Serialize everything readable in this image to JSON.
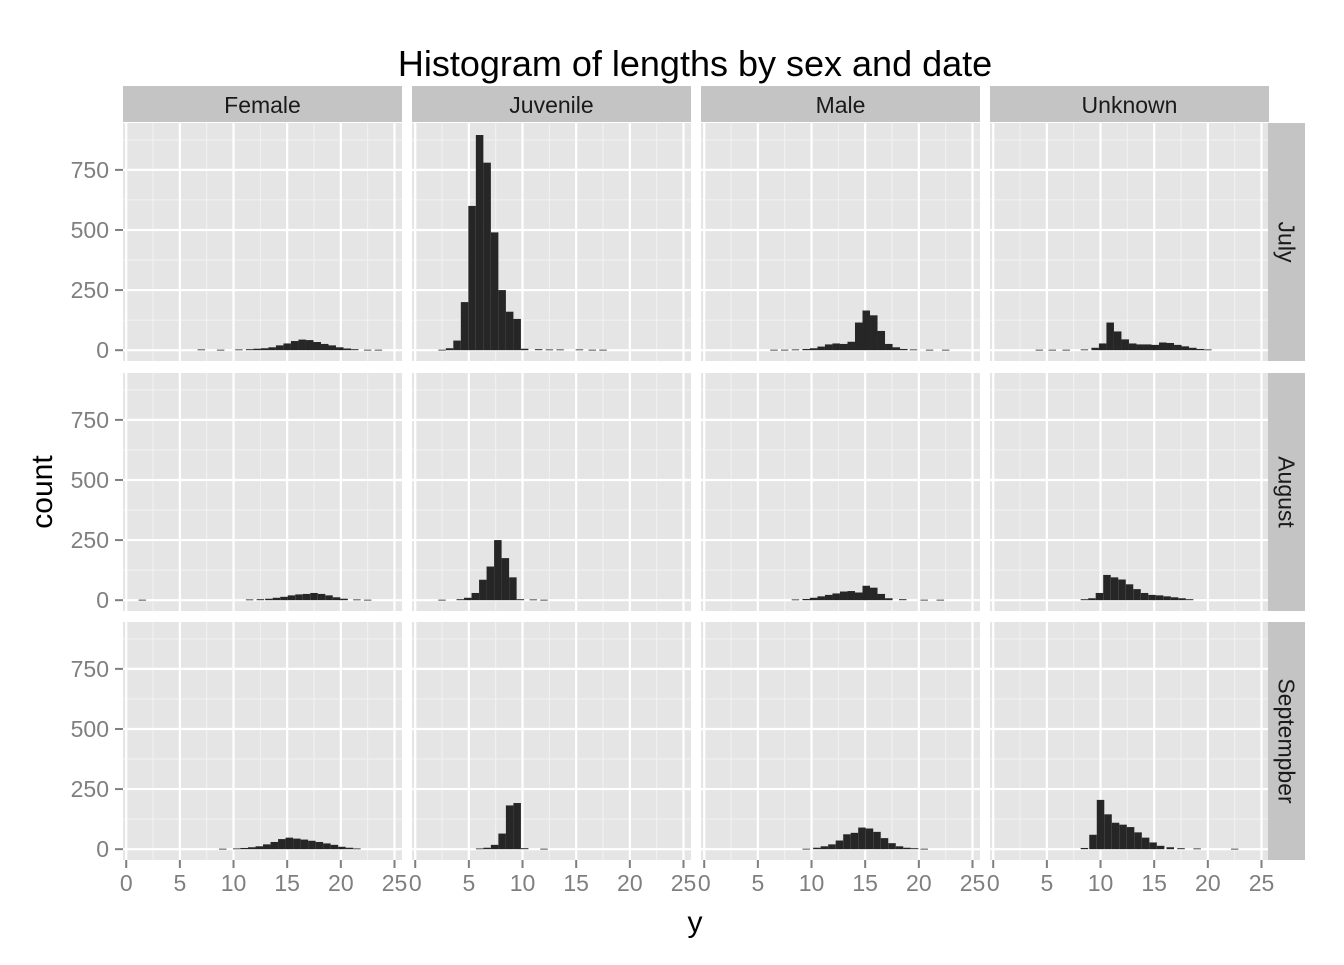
{
  "chart_data": {
    "type": "bar",
    "title": "Histogram of lengths by sex and date",
    "xlabel": "y",
    "ylabel": "count",
    "xlim": [
      -0.3,
      25.7
    ],
    "ylim": [
      -45,
      945
    ],
    "x_ticks": [
      0,
      5,
      10,
      15,
      20,
      25
    ],
    "y_ticks": [
      0,
      250,
      500,
      750
    ],
    "y_tick_labels": [
      "0",
      "250",
      "500",
      "750"
    ],
    "x_tick_labels": [
      "0",
      "5",
      "10",
      "15",
      "20",
      "25"
    ],
    "grid": true,
    "legend": "none",
    "bin_width": 0.7,
    "bar_color": "#262626",
    "panel_background": "#e5e5e5",
    "strip_background": "#c4c4c4",
    "columns": [
      "Female",
      "Juvenile",
      "Male",
      "Unknown"
    ],
    "rows": [
      "July",
      "August",
      "Septempber"
    ],
    "panels": [
      {
        "column": "Female",
        "row": "July",
        "bins": [
          [
            7.0,
            3
          ],
          [
            8.8,
            2
          ],
          [
            10.5,
            3
          ],
          [
            11.5,
            4
          ],
          [
            12.2,
            6
          ],
          [
            12.9,
            8
          ],
          [
            13.6,
            12
          ],
          [
            14.3,
            20
          ],
          [
            15.0,
            28
          ],
          [
            15.7,
            38
          ],
          [
            16.4,
            44
          ],
          [
            17.1,
            42
          ],
          [
            17.8,
            34
          ],
          [
            18.5,
            26
          ],
          [
            19.2,
            20
          ],
          [
            19.9,
            12
          ],
          [
            20.6,
            7
          ],
          [
            21.3,
            4
          ],
          [
            22.5,
            2
          ],
          [
            23.5,
            2
          ]
        ]
      },
      {
        "column": "Juvenile",
        "row": "July",
        "bins": [
          [
            2.5,
            2
          ],
          [
            3.2,
            8
          ],
          [
            3.9,
            40
          ],
          [
            4.6,
            200
          ],
          [
            5.3,
            600
          ],
          [
            6.0,
            895
          ],
          [
            6.7,
            780
          ],
          [
            7.4,
            490
          ],
          [
            8.1,
            250
          ],
          [
            8.8,
            160
          ],
          [
            9.5,
            130
          ],
          [
            10.2,
            6
          ],
          [
            11.5,
            4
          ],
          [
            12.5,
            3
          ],
          [
            13.5,
            3
          ],
          [
            15.3,
            3
          ],
          [
            16.5,
            2
          ],
          [
            17.5,
            2
          ]
        ]
      },
      {
        "column": "Male",
        "row": "July",
        "bins": [
          [
            6.5,
            2
          ],
          [
            7.5,
            2
          ],
          [
            8.5,
            3
          ],
          [
            9.5,
            5
          ],
          [
            10.2,
            8
          ],
          [
            10.9,
            15
          ],
          [
            11.6,
            24
          ],
          [
            12.3,
            28
          ],
          [
            13.0,
            26
          ],
          [
            13.7,
            35
          ],
          [
            14.4,
            115
          ],
          [
            15.1,
            165
          ],
          [
            15.8,
            145
          ],
          [
            16.5,
            80
          ],
          [
            17.2,
            26
          ],
          [
            17.9,
            12
          ],
          [
            18.6,
            5
          ],
          [
            19.5,
            3
          ],
          [
            21.0,
            2
          ],
          [
            22.5,
            2
          ]
        ]
      },
      {
        "column": "Unknown",
        "row": "July",
        "bins": [
          [
            4.3,
            2
          ],
          [
            5.5,
            2
          ],
          [
            6.8,
            2
          ],
          [
            8.5,
            3
          ],
          [
            9.5,
            10
          ],
          [
            10.2,
            28
          ],
          [
            10.9,
            115
          ],
          [
            11.6,
            78
          ],
          [
            12.3,
            45
          ],
          [
            13.0,
            28
          ],
          [
            13.7,
            24
          ],
          [
            14.4,
            24
          ],
          [
            15.1,
            22
          ],
          [
            15.8,
            32
          ],
          [
            16.5,
            30
          ],
          [
            17.2,
            22
          ],
          [
            17.9,
            16
          ],
          [
            18.6,
            10
          ],
          [
            19.3,
            5
          ],
          [
            20.0,
            3
          ]
        ]
      },
      {
        "column": "Female",
        "row": "August",
        "bins": [
          [
            1.5,
            2
          ],
          [
            11.5,
            3
          ],
          [
            12.5,
            4
          ],
          [
            13.3,
            6
          ],
          [
            14.0,
            10
          ],
          [
            14.7,
            14
          ],
          [
            15.4,
            20
          ],
          [
            16.1,
            24
          ],
          [
            16.8,
            26
          ],
          [
            17.5,
            30
          ],
          [
            18.2,
            26
          ],
          [
            18.9,
            20
          ],
          [
            19.6,
            12
          ],
          [
            20.3,
            6
          ],
          [
            21.5,
            3
          ],
          [
            22.5,
            2
          ]
        ]
      },
      {
        "column": "Juvenile",
        "row": "August",
        "bins": [
          [
            2.5,
            2
          ],
          [
            4.2,
            4
          ],
          [
            4.9,
            10
          ],
          [
            5.6,
            30
          ],
          [
            6.3,
            85
          ],
          [
            7.0,
            140
          ],
          [
            7.7,
            250
          ],
          [
            8.4,
            175
          ],
          [
            9.1,
            95
          ],
          [
            9.8,
            4
          ],
          [
            11.0,
            3
          ],
          [
            12.0,
            2
          ]
        ]
      },
      {
        "column": "Male",
        "row": "August",
        "bins": [
          [
            8.5,
            3
          ],
          [
            9.5,
            5
          ],
          [
            10.2,
            10
          ],
          [
            10.9,
            16
          ],
          [
            11.6,
            22
          ],
          [
            12.3,
            28
          ],
          [
            13.0,
            36
          ],
          [
            13.7,
            38
          ],
          [
            14.4,
            32
          ],
          [
            15.1,
            60
          ],
          [
            15.8,
            52
          ],
          [
            16.5,
            26
          ],
          [
            17.2,
            8
          ],
          [
            18.5,
            4
          ],
          [
            20.5,
            2
          ],
          [
            22.0,
            2
          ]
        ]
      },
      {
        "column": "Unknown",
        "row": "August",
        "bins": [
          [
            8.5,
            4
          ],
          [
            9.2,
            8
          ],
          [
            9.9,
            30
          ],
          [
            10.6,
            105
          ],
          [
            11.3,
            95
          ],
          [
            12.0,
            86
          ],
          [
            12.7,
            66
          ],
          [
            13.4,
            46
          ],
          [
            14.1,
            30
          ],
          [
            14.8,
            22
          ],
          [
            15.5,
            20
          ],
          [
            16.2,
            16
          ],
          [
            16.9,
            12
          ],
          [
            17.6,
            8
          ],
          [
            18.3,
            4
          ]
        ]
      },
      {
        "column": "Female",
        "row": "Septempber",
        "bins": [
          [
            9.0,
            2
          ],
          [
            10.3,
            3
          ],
          [
            11.0,
            5
          ],
          [
            11.7,
            8
          ],
          [
            12.4,
            12
          ],
          [
            13.1,
            20
          ],
          [
            13.8,
            30
          ],
          [
            14.5,
            42
          ],
          [
            15.2,
            48
          ],
          [
            15.9,
            44
          ],
          [
            16.6,
            40
          ],
          [
            17.3,
            35
          ],
          [
            18.0,
            30
          ],
          [
            18.7,
            24
          ],
          [
            19.4,
            18
          ],
          [
            20.1,
            10
          ],
          [
            20.8,
            6
          ],
          [
            21.5,
            3
          ]
        ]
      },
      {
        "column": "Juvenile",
        "row": "Septempber",
        "bins": [
          [
            6.0,
            3
          ],
          [
            6.7,
            6
          ],
          [
            7.4,
            18
          ],
          [
            8.1,
            65
          ],
          [
            8.8,
            182
          ],
          [
            9.5,
            192
          ],
          [
            10.2,
            4
          ],
          [
            12.0,
            2
          ]
        ]
      },
      {
        "column": "Male",
        "row": "Septempber",
        "bins": [
          [
            9.5,
            2
          ],
          [
            10.5,
            6
          ],
          [
            11.2,
            12
          ],
          [
            11.9,
            20
          ],
          [
            12.6,
            36
          ],
          [
            13.3,
            62
          ],
          [
            14.0,
            68
          ],
          [
            14.7,
            90
          ],
          [
            15.4,
            86
          ],
          [
            16.1,
            72
          ],
          [
            16.8,
            46
          ],
          [
            17.5,
            25
          ],
          [
            18.2,
            12
          ],
          [
            18.9,
            6
          ],
          [
            19.6,
            4
          ],
          [
            20.5,
            2
          ]
        ]
      },
      {
        "column": "Unknown",
        "row": "Septempber",
        "bins": [
          [
            8.5,
            5
          ],
          [
            9.3,
            60
          ],
          [
            10.0,
            205
          ],
          [
            10.7,
            145
          ],
          [
            11.4,
            110
          ],
          [
            12.1,
            102
          ],
          [
            12.8,
            92
          ],
          [
            13.5,
            70
          ],
          [
            14.2,
            48
          ],
          [
            14.9,
            28
          ],
          [
            15.6,
            14
          ],
          [
            16.5,
            8
          ],
          [
            17.5,
            4
          ],
          [
            19.0,
            3
          ],
          [
            22.5,
            2
          ]
        ]
      }
    ]
  }
}
